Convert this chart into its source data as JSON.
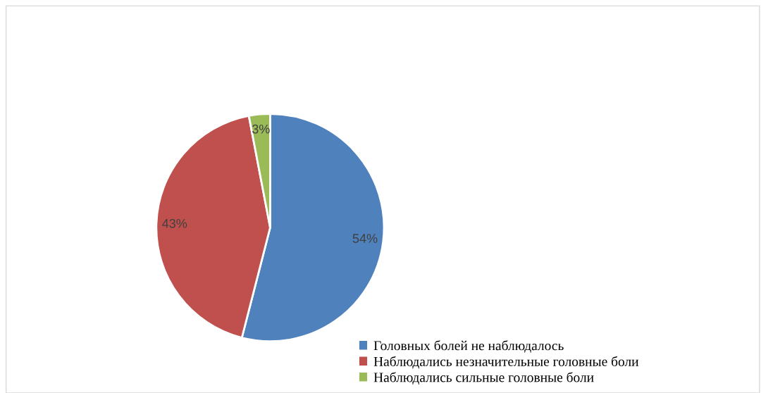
{
  "chart_data": {
    "type": "pie",
    "categories": [
      "Головных болей не наблюдалось",
      "Наблюдались незначительные головные боли",
      "Наблюдались сильные головные боли"
    ],
    "values": [
      54,
      43,
      3
    ],
    "colors": [
      "#4f81bd",
      "#c0504d",
      "#9bbb59"
    ],
    "value_labels": [
      "54%",
      "43%",
      "3%"
    ],
    "legend": "bottom right"
  }
}
